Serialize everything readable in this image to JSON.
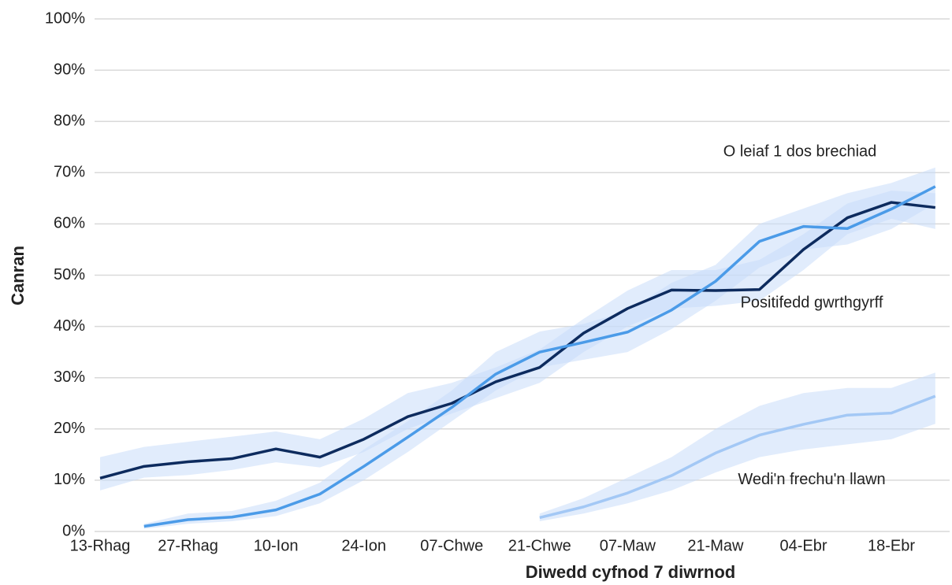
{
  "chart_data": {
    "type": "line",
    "xlabel": "Diwedd cyfnod 7 diwrnod",
    "ylabel": "Canran",
    "categories": [
      "13-Rhag",
      null,
      "27-Rhag",
      null,
      "10-Ion",
      null,
      "24-Ion",
      null,
      "07-Chwe",
      null,
      "21-Chwe",
      null,
      "07-Maw",
      null,
      "21-Maw",
      null,
      "04-Ebr",
      null,
      "18-Ebr",
      null
    ],
    "ylim": [
      0,
      100
    ],
    "yticks": [
      {
        "value": 0,
        "label": "0%"
      },
      {
        "value": 10,
        "label": "10%"
      },
      {
        "value": 20,
        "label": "20%"
      },
      {
        "value": 30,
        "label": "30%"
      },
      {
        "value": 40,
        "label": "40%"
      },
      {
        "value": 50,
        "label": "50%"
      },
      {
        "value": 60,
        "label": "60%"
      },
      {
        "value": 70,
        "label": "70%"
      },
      {
        "value": 80,
        "label": "80%"
      },
      {
        "value": 90,
        "label": "90%"
      },
      {
        "value": 100,
        "label": "100%"
      }
    ],
    "grid": true,
    "band_color": "#c9dcfa",
    "series": [
      {
        "name": "Positifedd gwrthgyrff",
        "color": "#0d2b5e",
        "values": [
          10.4,
          12.7,
          13.6,
          14.2,
          16.1,
          14.5,
          18,
          22.4,
          25,
          29.2,
          32,
          38.7,
          43.5,
          47.1,
          47,
          47.2,
          55,
          61.2,
          64.2,
          63.2
        ],
        "lower": [
          8,
          10.5,
          11,
          12,
          13.5,
          12.5,
          15.5,
          20,
          23,
          26,
          29,
          35,
          40,
          43.5,
          44,
          45,
          51,
          58,
          61,
          59
        ],
        "upper": [
          14.5,
          16.5,
          17.5,
          18.5,
          19.5,
          18,
          22,
          27,
          29,
          32,
          35.5,
          41.5,
          47,
          51,
          51,
          53,
          58,
          64,
          66.5,
          66
        ]
      },
      {
        "name": "O leiaf 1 dos brechiad",
        "color": "#4b9be8",
        "values": [
          null,
          1.0,
          2.3,
          2.8,
          4.2,
          7.3,
          12.7,
          18.4,
          24.2,
          30.7,
          35,
          36.9,
          38.9,
          43.2,
          48.8,
          56.6,
          59.5,
          59.1,
          62.9,
          67.3
        ],
        "lower": [
          null,
          0.5,
          1.5,
          2,
          3,
          5.5,
          10,
          15.5,
          21.5,
          27.5,
          32,
          33.5,
          35,
          39.5,
          45,
          51.5,
          55,
          56,
          59,
          64
        ],
        "upper": [
          null,
          1.5,
          3.5,
          4,
          6,
          9.5,
          16,
          21.5,
          27.5,
          35,
          39,
          40.5,
          43,
          48.5,
          52,
          60,
          63,
          66,
          68,
          71
        ]
      },
      {
        "name": "Wedi'n frechu'n llawn",
        "color": "#a3c8f5",
        "values": [
          null,
          null,
          null,
          null,
          null,
          null,
          null,
          null,
          null,
          null,
          2.7,
          4.8,
          7.5,
          10.9,
          15.3,
          18.8,
          20.9,
          22.7,
          23.1,
          26.4
        ],
        "lower": [
          null,
          null,
          null,
          null,
          null,
          null,
          null,
          null,
          null,
          null,
          2,
          3.5,
          5.5,
          8,
          11.5,
          14.5,
          16,
          17,
          18,
          21
        ],
        "upper": [
          null,
          null,
          null,
          null,
          null,
          null,
          null,
          null,
          null,
          null,
          3.5,
          6.5,
          10.5,
          14.5,
          20,
          24.5,
          27,
          28,
          28,
          31
        ]
      }
    ]
  }
}
